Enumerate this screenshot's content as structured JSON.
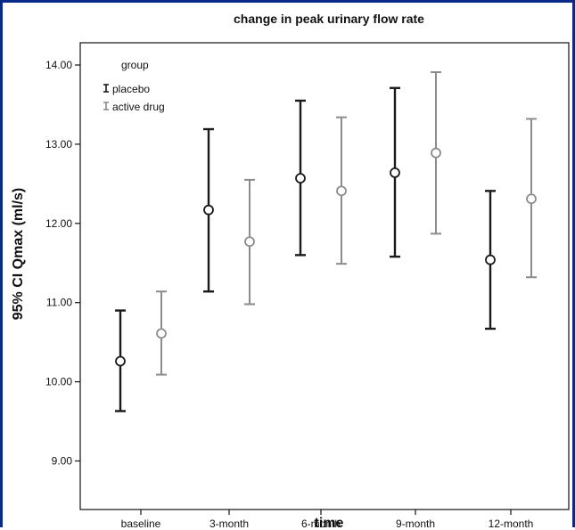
{
  "chart_data": {
    "type": "scatter",
    "title": "change in peak urinary flow rate",
    "xlabel": "time",
    "ylabel": "95% CI Qmax (ml/s)",
    "categories": [
      "baseline",
      "3-month",
      "6-month",
      "9-month",
      "12-month"
    ],
    "yticks": [
      "9.00",
      "10.00",
      "11.00",
      "12.00",
      "13.00",
      "14.00"
    ],
    "ylim": [
      8.7,
      14.2
    ],
    "grid": false,
    "legend": {
      "title": "group",
      "placement": "top-left",
      "entries": [
        "placebo",
        "active drug"
      ]
    },
    "series": [
      {
        "name": "placebo",
        "color": "#1a1a1a",
        "mean": [
          10.26,
          12.17,
          12.57,
          12.64,
          11.54
        ],
        "lower": [
          9.63,
          11.14,
          11.6,
          11.58,
          10.67
        ],
        "upper": [
          10.9,
          13.19,
          13.55,
          13.71,
          12.41
        ]
      },
      {
        "name": "active drug",
        "color": "#8c8c8c",
        "mean": [
          10.61,
          11.77,
          12.41,
          12.89,
          12.31
        ],
        "lower": [
          10.09,
          10.98,
          11.49,
          11.87,
          11.32
        ],
        "upper": [
          11.14,
          12.55,
          13.34,
          13.91,
          13.32
        ]
      }
    ]
  }
}
